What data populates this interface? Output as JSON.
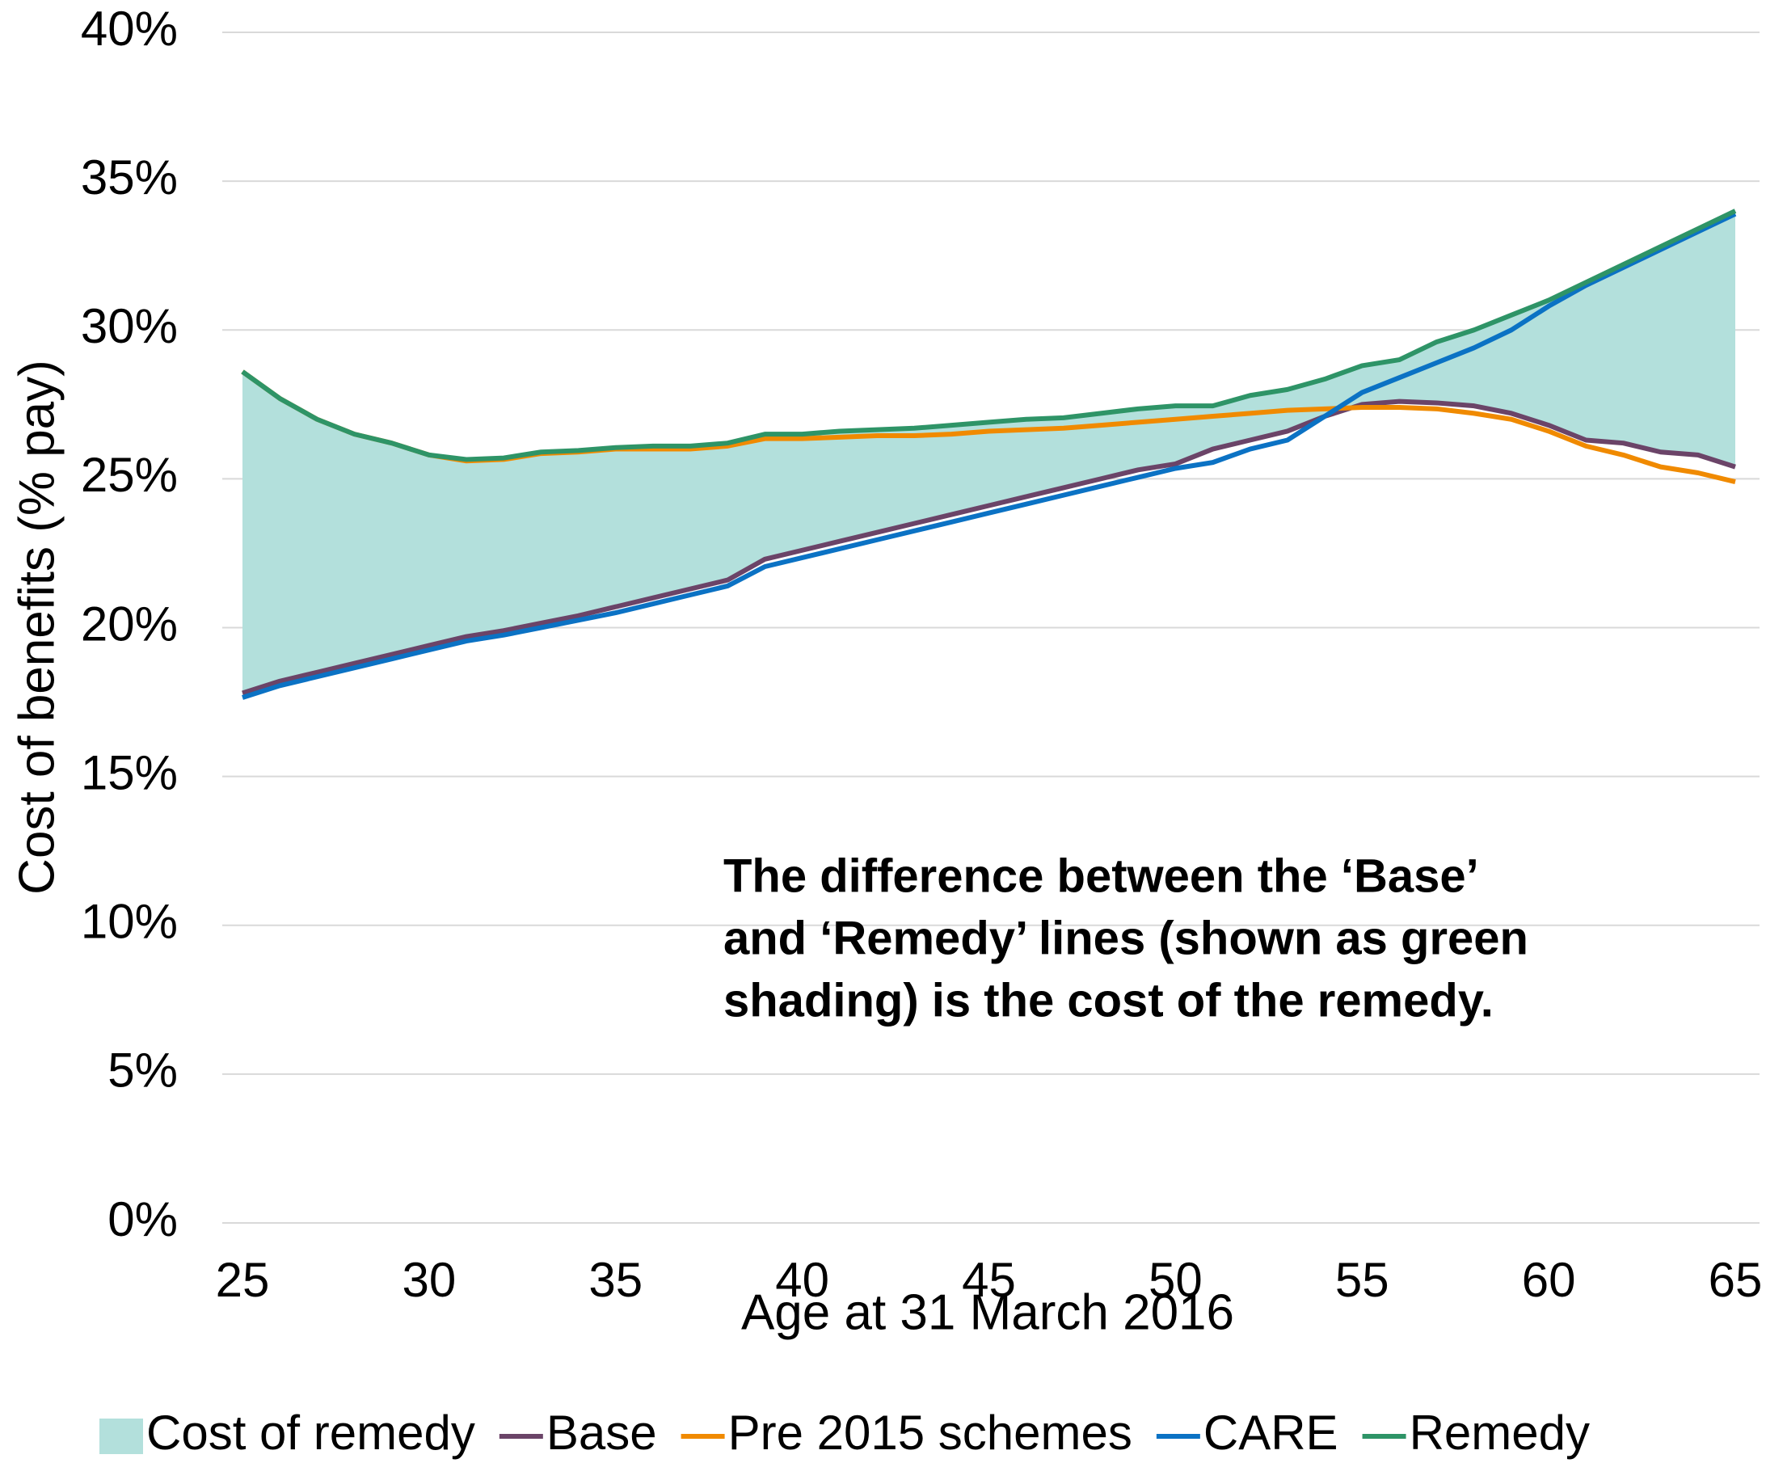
{
  "chart_data": {
    "type": "line",
    "y_label": "Cost of benefits (% pay)",
    "x_label": "Age at 31 March 2016",
    "annotation": [
      "The difference between the ‘Base’",
      "and ‘Remedy’ lines (shown as green",
      "shading) is the cost of the remedy."
    ],
    "x": [
      25,
      26,
      27,
      28,
      29,
      30,
      31,
      32,
      33,
      34,
      35,
      36,
      37,
      38,
      39,
      40,
      41,
      42,
      43,
      44,
      45,
      46,
      47,
      48,
      49,
      50,
      51,
      52,
      53,
      54,
      55,
      56,
      57,
      58,
      59,
      60,
      61,
      62,
      63,
      64,
      65
    ],
    "xlim": [
      25,
      65
    ],
    "xticks": [
      25,
      30,
      35,
      40,
      45,
      50,
      55,
      60,
      65
    ],
    "ylim": [
      0,
      40
    ],
    "yticks": [
      {
        "value": 0,
        "label": "0%"
      },
      {
        "value": 5,
        "label": "5%"
      },
      {
        "value": 10,
        "label": "10%"
      },
      {
        "value": 15,
        "label": "15%"
      },
      {
        "value": 20,
        "label": "20%"
      },
      {
        "value": 25,
        "label": "25%"
      },
      {
        "value": 30,
        "label": "30%"
      },
      {
        "value": 35,
        "label": "35%"
      },
      {
        "value": 40,
        "label": "40%"
      }
    ],
    "grid": true,
    "legend": "bottom",
    "series": [
      {
        "name": "Cost of remedy",
        "type": "area",
        "stacked_on": "Base",
        "color": "#b3e0dc",
        "values": [
          10.8,
          9.5,
          8.5,
          7.7,
          7.1,
          6.4,
          5.95,
          5.8,
          5.75,
          5.55,
          5.35,
          5.1,
          4.8,
          4.6,
          4.2,
          3.9,
          3.7,
          3.45,
          3.2,
          3.0,
          2.8,
          2.6,
          2.35,
          2.2,
          2.05,
          1.95,
          1.45,
          1.5,
          1.4,
          1.25,
          1.3,
          1.4,
          2.05,
          2.55,
          3.3,
          4.2,
          5.3,
          6.0,
          6.9,
          7.6,
          8.6
        ]
      },
      {
        "name": "Base",
        "type": "line",
        "color": "#6b4468",
        "values": [
          17.8,
          18.2,
          18.5,
          18.8,
          19.1,
          19.4,
          19.7,
          19.9,
          20.15,
          20.4,
          20.7,
          21.0,
          21.3,
          21.6,
          22.3,
          22.6,
          22.9,
          23.2,
          23.5,
          23.8,
          24.1,
          24.4,
          24.7,
          25.0,
          25.3,
          25.5,
          26.0,
          26.3,
          26.6,
          27.1,
          27.5,
          27.6,
          27.55,
          27.45,
          27.2,
          26.8,
          26.3,
          26.2,
          25.9,
          25.8,
          25.4
        ]
      },
      {
        "name": "Pre 2015 schemes",
        "type": "line",
        "color": "#f08a00",
        "values": [
          28.6,
          27.7,
          27.0,
          26.5,
          26.2,
          25.8,
          25.6,
          25.65,
          25.85,
          25.9,
          26.0,
          26.0,
          26.0,
          26.1,
          26.35,
          26.35,
          26.4,
          26.45,
          26.45,
          26.5,
          26.6,
          26.65,
          26.7,
          26.8,
          26.9,
          27.0,
          27.1,
          27.2,
          27.3,
          27.35,
          27.4,
          27.4,
          27.35,
          27.2,
          27.0,
          26.6,
          26.1,
          25.8,
          25.4,
          25.2,
          24.9
        ]
      },
      {
        "name": "CARE",
        "type": "line",
        "color": "#0b72c4",
        "values": [
          17.65,
          18.05,
          18.35,
          18.65,
          18.95,
          19.25,
          19.55,
          19.75,
          20.0,
          20.25,
          20.5,
          20.8,
          21.1,
          21.4,
          22.05,
          22.35,
          22.65,
          22.95,
          23.25,
          23.55,
          23.85,
          24.15,
          24.45,
          24.75,
          25.05,
          25.35,
          25.55,
          26.0,
          26.3,
          27.1,
          27.9,
          28.4,
          28.9,
          29.4,
          30.0,
          30.8,
          31.5,
          32.1,
          32.7,
          33.3,
          33.9
        ]
      },
      {
        "name": "Remedy",
        "type": "line",
        "color": "#2e9467",
        "values": [
          28.6,
          27.7,
          27.0,
          26.5,
          26.2,
          25.8,
          25.65,
          25.7,
          25.9,
          25.95,
          26.05,
          26.1,
          26.1,
          26.2,
          26.5,
          26.5,
          26.6,
          26.65,
          26.7,
          26.8,
          26.9,
          27.0,
          27.05,
          27.2,
          27.35,
          27.45,
          27.45,
          27.8,
          28.0,
          28.35,
          28.8,
          29.0,
          29.6,
          30.0,
          30.5,
          31.0,
          31.6,
          32.2,
          32.8,
          33.4,
          34.0
        ]
      }
    ]
  }
}
